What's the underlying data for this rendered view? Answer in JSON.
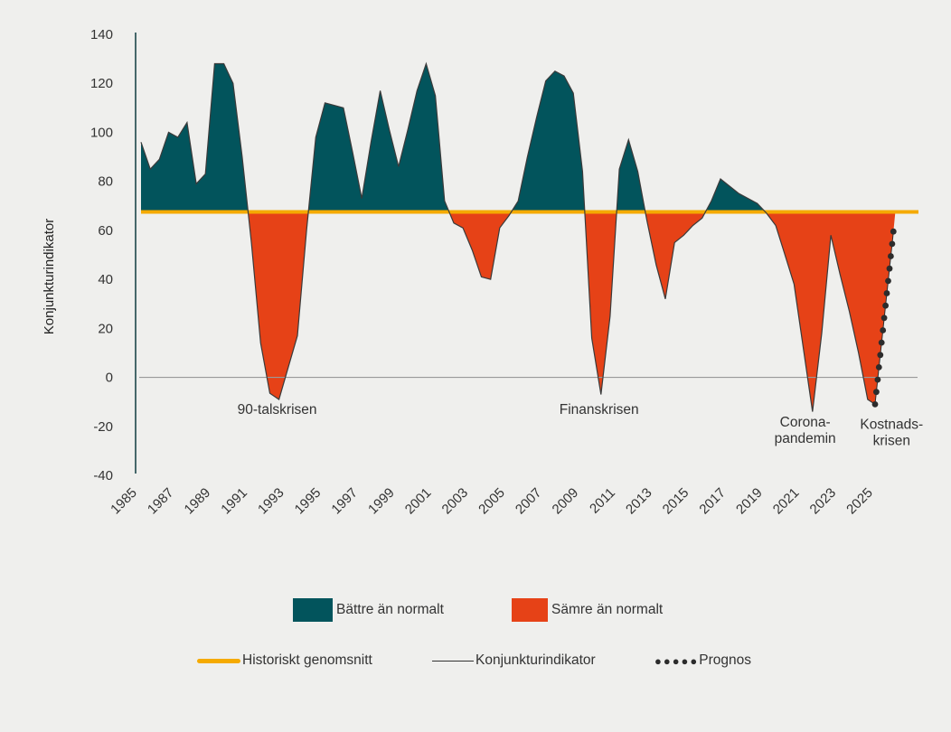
{
  "chart_data": {
    "type": "area",
    "title": "",
    "xlabel": "",
    "ylabel": "Konjunkturindikator",
    "ylim": [
      -40,
      140
    ],
    "yticks": [
      140,
      120,
      100,
      80,
      60,
      40,
      20,
      0,
      -20,
      -40
    ],
    "xlim": [
      1985,
      2027
    ],
    "xticks": [
      "1985",
      "1987",
      "1989",
      "1991",
      "1993",
      "1995",
      "1997",
      "1999",
      "2001",
      "2003",
      "2005",
      "2007",
      "2009",
      "2011",
      "2013",
      "2015",
      "2017",
      "2019",
      "2021",
      "2023",
      "2025"
    ],
    "historical_average": 67.5,
    "series": [
      {
        "name": "Konjunkturindikator",
        "x": [
          1985,
          1985.5,
          1986,
          1986.5,
          1987,
          1987.5,
          1988,
          1988.5,
          1989,
          1989.5,
          1990,
          1990.5,
          1991,
          1991.5,
          1992,
          1992.5,
          1993,
          1993.5,
          1994,
          1994.5,
          1995,
          1995.5,
          1996,
          1996.5,
          1997,
          1997.5,
          1998,
          1998.5,
          1999,
          1999.5,
          2000,
          2000.5,
          2001,
          2001.5,
          2002,
          2002.5,
          2003,
          2003.5,
          2004,
          2004.5,
          2005,
          2005.5,
          2006,
          2006.5,
          2007,
          2007.5,
          2008,
          2008.5,
          2009,
          2009.5,
          2010,
          2010.5,
          2011,
          2011.5,
          2012,
          2012.5,
          2013,
          2013.5,
          2014,
          2014.5,
          2015,
          2015.5,
          2016,
          2016.5,
          2017,
          2017.5,
          2018,
          2018.5,
          2019,
          2019.5,
          2020,
          2020.5,
          2021,
          2021.5,
          2022,
          2022.5,
          2023,
          2023.5,
          2024,
          2024.5
        ],
        "values": [
          96,
          85,
          89,
          100,
          98,
          104,
          79,
          83,
          128,
          128,
          120,
          90,
          55,
          14,
          -6.5,
          -9,
          4,
          17,
          60,
          98,
          112,
          111,
          110,
          92,
          73,
          96,
          117,
          101,
          86,
          101,
          117,
          128,
          115,
          72,
          63,
          61,
          52,
          41,
          40,
          61,
          66,
          72,
          90,
          106,
          121,
          125,
          123,
          116,
          84,
          16,
          -7,
          25,
          85,
          97,
          84,
          64,
          46,
          32,
          55,
          58,
          62,
          65,
          72,
          81,
          78,
          75,
          73,
          71,
          67,
          62,
          50,
          38,
          12,
          -14,
          18,
          58,
          42,
          27,
          10,
          -9
        ]
      },
      {
        "name": "Prognos",
        "x": [
          2024.9,
          2025.9
        ],
        "values": [
          -11,
          59.5
        ]
      }
    ],
    "annotations": [
      {
        "text": "90-talskrisen",
        "x": 1992.4,
        "y": -15
      },
      {
        "text": "Finanskrisen",
        "x": 2009.9,
        "y": -15
      },
      {
        "text": "Corona-\npandemin",
        "x": 2021.1,
        "y": -20
      },
      {
        "text": "Kostnads-\nkrisen",
        "x": 2025.8,
        "y": -21
      }
    ],
    "legend": {
      "placement": "bottom",
      "items": [
        {
          "label": "Bättre än normalt",
          "color": "#02545c",
          "kind": "swatch"
        },
        {
          "label": "Sämre än normalt",
          "color": "#e64217",
          "kind": "swatch"
        },
        {
          "label": "Historiskt genomsnitt",
          "color": "#f5aa00",
          "kind": "thick-line"
        },
        {
          "label": "Konjunkturindikator",
          "color": "#333333",
          "kind": "thin-line"
        },
        {
          "label": "Prognos",
          "color": "#2c2c2c",
          "kind": "dots"
        }
      ]
    },
    "colors": {
      "better": "#02545c",
      "worse": "#e64217",
      "average": "#f5aa00",
      "line": "#3a3a3a",
      "zero": "#9a9a9a",
      "axis": "#0f3b3e"
    }
  }
}
